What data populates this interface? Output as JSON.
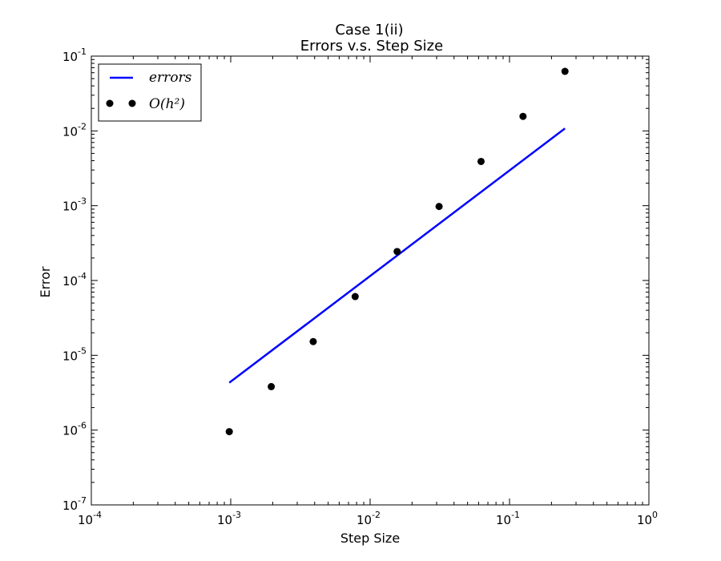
{
  "chart_data": {
    "type": "line",
    "title": "Case 1(ii)",
    "subtitle": "Errors v.s. Step Size",
    "xlabel": "Step Size",
    "ylabel": "Error",
    "xscale": "log",
    "yscale": "log",
    "xlim": [
      0.0001,
      1
    ],
    "ylim": [
      1e-07,
      0.1
    ],
    "grid": false,
    "legend_position": "top-left",
    "x_ticks": [
      {
        "value": 0.0001,
        "base": "10",
        "exp": "-4"
      },
      {
        "value": 0.001,
        "base": "10",
        "exp": "-3"
      },
      {
        "value": 0.01,
        "base": "10",
        "exp": "-2"
      },
      {
        "value": 0.1,
        "base": "10",
        "exp": "-1"
      },
      {
        "value": 1,
        "base": "10",
        "exp": "0"
      }
    ],
    "y_ticks": [
      {
        "value": 1e-07,
        "base": "10",
        "exp": "-7"
      },
      {
        "value": 1e-06,
        "base": "10",
        "exp": "-6"
      },
      {
        "value": 1e-05,
        "base": "10",
        "exp": "-5"
      },
      {
        "value": 0.0001,
        "base": "10",
        "exp": "-4"
      },
      {
        "value": 0.001,
        "base": "10",
        "exp": "-3"
      },
      {
        "value": 0.01,
        "base": "10",
        "exp": "-2"
      },
      {
        "value": 0.1,
        "base": "10",
        "exp": "-1"
      }
    ],
    "series": [
      {
        "name": "errors",
        "style": "line",
        "color": "#0000ff",
        "x": [
          0.0009765625,
          0.25
        ],
        "y": [
          4.3e-06,
          0.0108
        ]
      },
      {
        "name": "O(h^2)",
        "legend_text": "O(h²)",
        "style": "markers",
        "color": "#000000",
        "x": [
          0.0009765625,
          0.001953125,
          0.00390625,
          0.0078125,
          0.015625,
          0.03125,
          0.0625,
          0.125,
          0.25
        ],
        "y": [
          9.5367e-07,
          3.8147e-06,
          1.5259e-05,
          6.1035e-05,
          0.00024414,
          0.00097656,
          0.00390625,
          0.015625,
          0.0625
        ]
      }
    ]
  }
}
